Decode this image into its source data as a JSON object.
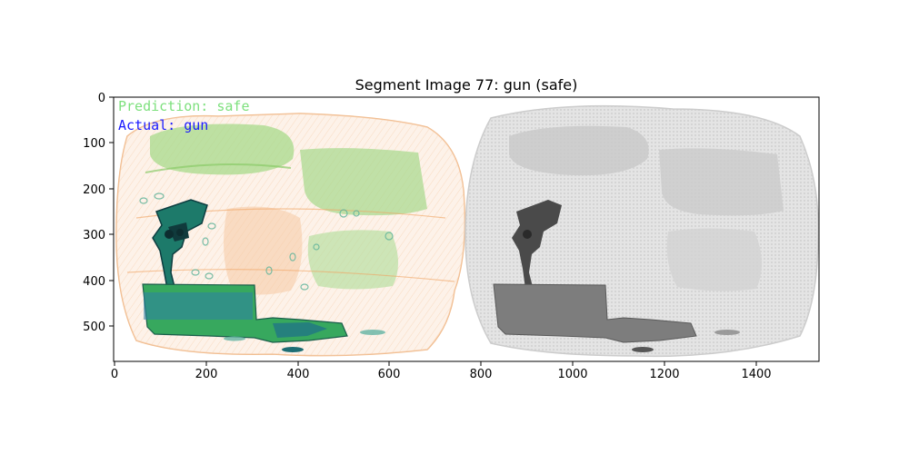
{
  "figure": {
    "title": "Segment Image 77: gun (safe)",
    "prediction_label": "Prediction: safe",
    "actual_label": "Actual: gun",
    "prediction_color": "#7de07d",
    "actual_color": "#1a1aff",
    "x_ticks": [
      "0",
      "200",
      "400",
      "600",
      "800",
      "1000",
      "1200",
      "1400"
    ],
    "y_ticks": [
      "0",
      "100",
      "200",
      "300",
      "400",
      "500"
    ]
  }
}
